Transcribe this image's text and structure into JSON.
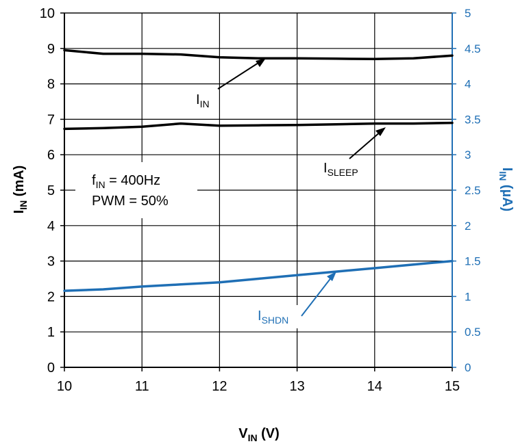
{
  "chart_data": {
    "type": "line",
    "xlabel": {
      "main": "V",
      "sub": "IN",
      "unit": " (V)"
    },
    "ylabel_left": {
      "main": "I",
      "sub": "IN",
      "unit": " (mA)"
    },
    "ylabel_right": {
      "main": "I",
      "sub": "IN",
      "unit": " (µA)"
    },
    "xlim": [
      10,
      15
    ],
    "ylim_left": [
      0,
      10
    ],
    "ylim_right": [
      0,
      5
    ],
    "x_ticks": [
      "10",
      "11",
      "12",
      "13",
      "14",
      "15"
    ],
    "y_ticks_left": [
      "0",
      "1",
      "2",
      "3",
      "4",
      "5",
      "6",
      "7",
      "8",
      "9",
      "10"
    ],
    "y_ticks_right": [
      "0",
      "0.5",
      "1",
      "1.5",
      "2",
      "2.5",
      "3",
      "3.5",
      "4",
      "4.5",
      "5"
    ],
    "grid": true,
    "series": [
      {
        "name": "IIN",
        "axis": "left",
        "color": "#000000",
        "x": [
          10,
          10.5,
          11,
          11.5,
          12,
          12.5,
          13,
          13.5,
          14,
          14.5,
          15
        ],
        "y": [
          8.95,
          8.85,
          8.85,
          8.83,
          8.75,
          8.72,
          8.72,
          8.71,
          8.7,
          8.72,
          8.8
        ]
      },
      {
        "name": "ISLEEP",
        "axis": "left",
        "color": "#000000",
        "x": [
          10,
          10.5,
          11,
          11.5,
          12,
          12.5,
          13,
          13.5,
          14,
          14.5,
          15
        ],
        "y": [
          6.73,
          6.75,
          6.79,
          6.88,
          6.82,
          6.83,
          6.84,
          6.86,
          6.88,
          6.88,
          6.9
        ]
      },
      {
        "name": "ISHDN",
        "axis": "right",
        "color": "#1f6fb5",
        "x": [
          10,
          10.5,
          11,
          11.5,
          12,
          12.5,
          13,
          13.5,
          14,
          14.5,
          15
        ],
        "y": [
          1.08,
          1.1,
          1.14,
          1.17,
          1.2,
          1.25,
          1.3,
          1.35,
          1.4,
          1.45,
          1.5
        ]
      }
    ],
    "annotations": [
      {
        "main": "I",
        "sub": "IN"
      },
      {
        "main": "I",
        "sub": "SLEEP"
      },
      {
        "main": "I",
        "sub": "SHDN"
      }
    ],
    "conditions": {
      "line1": {
        "main": "f",
        "sub": "IN",
        "rest": " = 400Hz"
      },
      "line2": "PWM = 50%"
    }
  }
}
